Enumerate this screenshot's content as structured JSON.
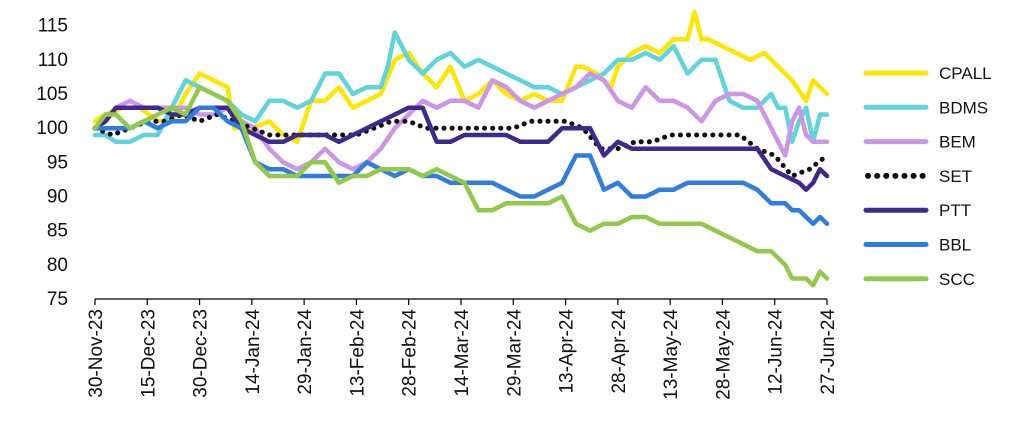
{
  "chart_data": {
    "type": "line",
    "title": "",
    "xlabel": "",
    "ylabel": "",
    "ylim": [
      75,
      117
    ],
    "yticks": [
      75,
      80,
      85,
      90,
      95,
      100,
      105,
      110,
      115
    ],
    "x_tick_labels": [
      "30-Nov-23",
      "15-Dec-23",
      "30-Dec-23",
      "14-Jan-24",
      "29-Jan-24",
      "13-Feb-24",
      "28-Feb-24",
      "14-Mar-24",
      "29-Mar-24",
      "13-Apr-24",
      "28-Apr-24",
      "13-May-24",
      "28-May-24",
      "12-Jun-24",
      "27-Jun-24"
    ],
    "x_range_days": [
      0,
      210
    ],
    "grid": false,
    "legend_position": "right",
    "series": [
      {
        "name": "CPALL",
        "color": "#ffe600",
        "dash": false,
        "x": [
          0,
          3,
          8,
          13,
          18,
          22,
          26,
          30,
          34,
          38,
          40,
          45,
          50,
          54,
          58,
          62,
          66,
          70,
          74,
          78,
          82,
          86,
          90,
          94,
          98,
          102,
          106,
          110,
          114,
          118,
          122,
          126,
          130,
          134,
          138,
          140,
          144,
          148,
          150,
          154,
          158,
          162,
          166,
          170,
          172,
          174,
          176,
          180,
          184,
          188,
          192,
          196,
          200,
          204,
          206,
          208,
          210
        ],
        "y": [
          101,
          102,
          103,
          103,
          101,
          101,
          105,
          108,
          107,
          106,
          100,
          100,
          101,
          99,
          98,
          104,
          104,
          106,
          103,
          104,
          105,
          110,
          111,
          108,
          106,
          109,
          104,
          105,
          107,
          105,
          104,
          105,
          104,
          104,
          109,
          109,
          108,
          106,
          109,
          111,
          112,
          111,
          113,
          113,
          117,
          113,
          113,
          112,
          111,
          110,
          111,
          109,
          107,
          104,
          107,
          106,
          105
        ]
      },
      {
        "name": "BDMS",
        "color": "#5fd4dc",
        "dash": false,
        "x": [
          0,
          3,
          6,
          10,
          14,
          18,
          22,
          26,
          30,
          34,
          38,
          42,
          46,
          50,
          54,
          58,
          62,
          66,
          70,
          74,
          78,
          82,
          84,
          86,
          90,
          94,
          98,
          102,
          106,
          110,
          114,
          118,
          122,
          126,
          130,
          134,
          138,
          142,
          146,
          150,
          154,
          158,
          162,
          166,
          170,
          174,
          178,
          182,
          186,
          190,
          194,
          196,
          198,
          200,
          202,
          204,
          206,
          208,
          210
        ],
        "y": [
          99,
          99,
          98,
          98,
          99,
          99,
          103,
          107,
          106,
          105,
          104,
          102,
          101,
          104,
          104,
          103,
          104,
          108,
          108,
          105,
          106,
          106,
          109,
          114,
          110,
          108,
          110,
          111,
          109,
          110,
          109,
          108,
          107,
          106,
          106,
          105,
          106,
          107,
          108,
          110,
          110,
          111,
          110,
          112,
          108,
          110,
          110,
          104,
          103,
          103,
          105,
          103,
          103,
          98,
          101,
          103,
          98,
          102,
          102
        ]
      },
      {
        "name": "BEM",
        "color": "#cc95e8",
        "dash": false,
        "x": [
          0,
          3,
          6,
          10,
          14,
          18,
          22,
          26,
          30,
          34,
          38,
          42,
          46,
          50,
          54,
          58,
          62,
          66,
          70,
          74,
          78,
          82,
          86,
          90,
          94,
          98,
          102,
          106,
          110,
          114,
          118,
          122,
          126,
          130,
          134,
          138,
          142,
          146,
          150,
          154,
          158,
          162,
          166,
          170,
          174,
          178,
          182,
          186,
          190,
          194,
          198,
          200,
          202,
          204,
          206,
          208,
          210
        ],
        "y": [
          100,
          101,
          103,
          104,
          103,
          103,
          103,
          103,
          102,
          102,
          103,
          101,
          100,
          97,
          95,
          94,
          95,
          97,
          95,
          94,
          95,
          97,
          100,
          102,
          104,
          103,
          104,
          104,
          103,
          107,
          106,
          104,
          103,
          104,
          105,
          106,
          108,
          107,
          104,
          103,
          106,
          104,
          104,
          103,
          101,
          104,
          105,
          105,
          104,
          100,
          96,
          101,
          103,
          99,
          98,
          98,
          98
        ]
      },
      {
        "name": "SET",
        "color": "#111111",
        "dash": true,
        "x": [
          0,
          5,
          10,
          15,
          20,
          25,
          30,
          35,
          40,
          45,
          50,
          55,
          60,
          65,
          70,
          75,
          80,
          85,
          90,
          95,
          100,
          105,
          110,
          115,
          120,
          125,
          130,
          135,
          140,
          145,
          150,
          155,
          160,
          165,
          170,
          175,
          180,
          185,
          190,
          195,
          200,
          205,
          210
        ],
        "y": [
          100,
          99,
          100,
          101,
          101,
          102,
          101,
          102,
          101,
          100,
          99,
          99,
          99,
          99,
          99,
          99,
          100,
          101,
          101,
          100,
          100,
          100,
          100,
          100,
          100,
          101,
          101,
          101,
          100,
          97,
          97,
          98,
          98,
          99,
          99,
          99,
          99,
          99,
          97,
          96,
          93,
          94,
          96
        ]
      },
      {
        "name": "PTT",
        "color": "#3e2a8c",
        "dash": false,
        "x": [
          0,
          3,
          6,
          10,
          14,
          18,
          22,
          26,
          30,
          34,
          38,
          42,
          46,
          50,
          54,
          58,
          62,
          66,
          70,
          74,
          78,
          82,
          86,
          90,
          94,
          98,
          102,
          106,
          110,
          114,
          118,
          122,
          126,
          130,
          134,
          138,
          142,
          146,
          150,
          154,
          158,
          162,
          166,
          170,
          174,
          178,
          182,
          186,
          190,
          194,
          198,
          202,
          204,
          206,
          208,
          210
        ],
        "y": [
          100,
          101,
          103,
          103,
          103,
          103,
          102,
          102,
          103,
          103,
          103,
          100,
          99,
          98,
          98,
          99,
          99,
          99,
          98,
          99,
          100,
          101,
          102,
          103,
          103,
          98,
          98,
          99,
          99,
          99,
          99,
          98,
          98,
          98,
          100,
          100,
          100,
          96,
          98,
          97,
          97,
          97,
          97,
          97,
          97,
          97,
          97,
          97,
          97,
          94,
          93,
          92,
          91,
          92,
          94,
          93
        ]
      },
      {
        "name": "BBL",
        "color": "#2f7de0",
        "dash": false,
        "x": [
          0,
          3,
          6,
          10,
          14,
          18,
          22,
          26,
          30,
          34,
          38,
          42,
          46,
          50,
          54,
          58,
          62,
          66,
          70,
          74,
          78,
          82,
          86,
          90,
          94,
          98,
          102,
          106,
          110,
          114,
          118,
          122,
          126,
          130,
          134,
          138,
          142,
          146,
          150,
          154,
          158,
          162,
          166,
          170,
          174,
          178,
          182,
          186,
          190,
          194,
          198,
          200,
          202,
          204,
          206,
          208,
          210
        ],
        "y": [
          100,
          100,
          100,
          100,
          101,
          100,
          101,
          101,
          103,
          103,
          101,
          100,
          95,
          94,
          94,
          93,
          93,
          93,
          93,
          93,
          95,
          94,
          93,
          94,
          93,
          93,
          92,
          92,
          92,
          92,
          91,
          90,
          90,
          91,
          92,
          96,
          96,
          91,
          92,
          90,
          90,
          91,
          91,
          92,
          92,
          92,
          92,
          92,
          91,
          89,
          89,
          88,
          88,
          87,
          86,
          87,
          86
        ]
      },
      {
        "name": "SCC",
        "color": "#93c94a",
        "dash": false,
        "x": [
          0,
          3,
          6,
          10,
          14,
          18,
          22,
          26,
          30,
          34,
          38,
          42,
          46,
          50,
          54,
          58,
          62,
          66,
          70,
          74,
          78,
          82,
          86,
          90,
          94,
          98,
          102,
          106,
          110,
          114,
          118,
          122,
          126,
          130,
          134,
          138,
          142,
          146,
          150,
          154,
          158,
          162,
          166,
          170,
          174,
          178,
          182,
          186,
          190,
          194,
          198,
          200,
          202,
          204,
          206,
          208,
          210
        ],
        "y": [
          100,
          102,
          102,
          100,
          101,
          102,
          103,
          102,
          106,
          105,
          104,
          101,
          95,
          93,
          93,
          93,
          95,
          95,
          92,
          93,
          93,
          94,
          94,
          94,
          93,
          94,
          93,
          92,
          88,
          88,
          89,
          89,
          89,
          89,
          90,
          86,
          85,
          86,
          86,
          87,
          87,
          86,
          86,
          86,
          86,
          85,
          84,
          83,
          82,
          82,
          80,
          78,
          78,
          78,
          77,
          79,
          78
        ]
      }
    ]
  }
}
